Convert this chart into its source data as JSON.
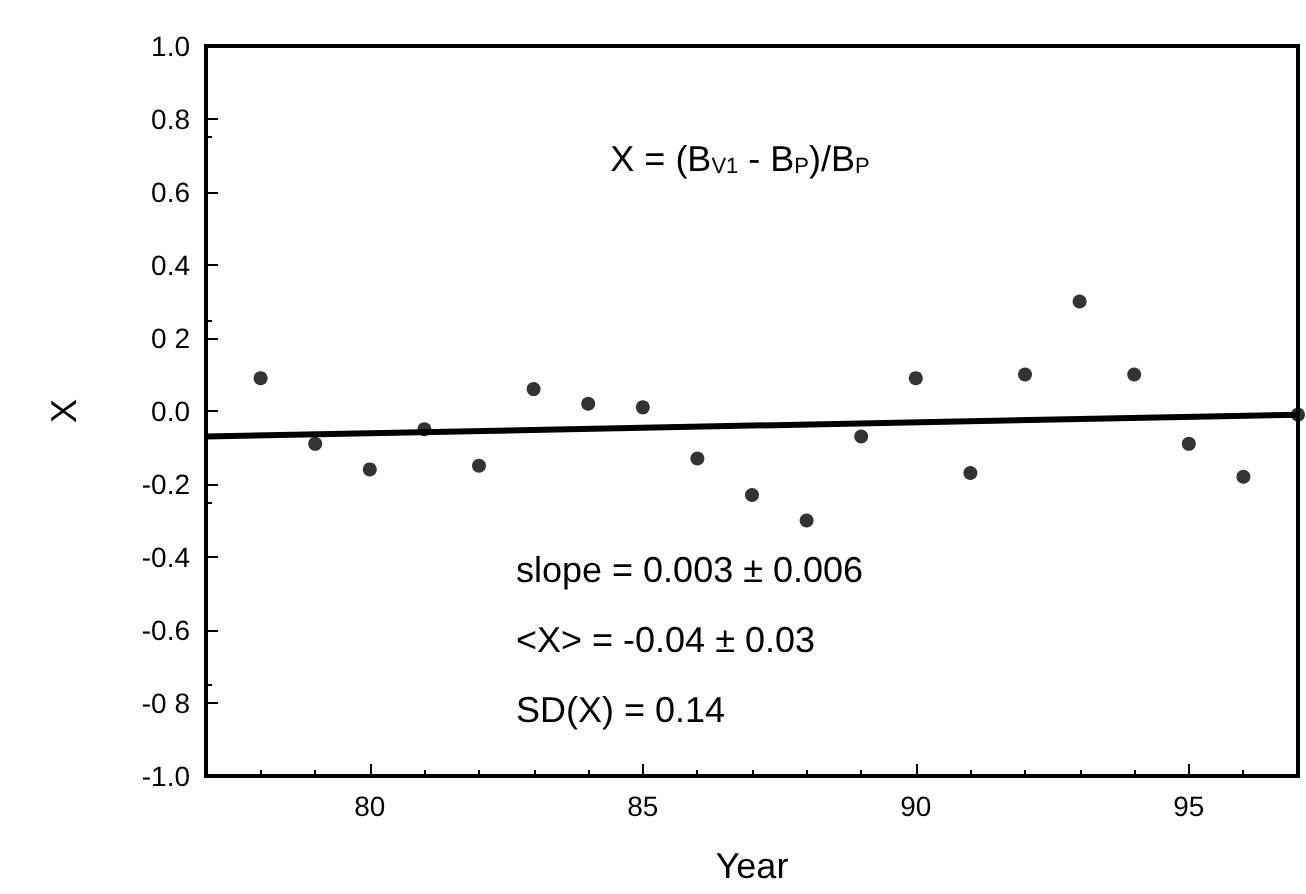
{
  "chart_data": {
    "type": "scatter",
    "xlabel": "Year",
    "ylabel": "X",
    "xlim": [
      77,
      97
    ],
    "xticks": [
      80,
      85,
      90,
      95
    ],
    "ylim": [
      -1.0,
      1.0
    ],
    "yticks": [
      {
        "value": -1.0,
        "label": "-1.0"
      },
      {
        "value": -0.8,
        "label": "-0 8"
      },
      {
        "value": -0.6,
        "label": "-0.6"
      },
      {
        "value": -0.4,
        "label": "-0.4"
      },
      {
        "value": -0.2,
        "label": "-0.2"
      },
      {
        "value": 0.0,
        "label": "0.0"
      },
      {
        "value": 0.2,
        "label": "0 2"
      },
      {
        "value": 0.4,
        "label": "0.4"
      },
      {
        "value": 0.6,
        "label": "0.6"
      },
      {
        "value": 0.8,
        "label": "0.8"
      },
      {
        "value": 1.0,
        "label": "1.0"
      }
    ],
    "grid": false,
    "marker": "circle",
    "series": [
      {
        "color": "#000000",
        "x": [
          78,
          79,
          80,
          81,
          82,
          83,
          84,
          85,
          86,
          87,
          88,
          89,
          90,
          91,
          92,
          93,
          94,
          95,
          96,
          97
        ],
        "values": [
          0.09,
          -0.09,
          -0.16,
          -0.05,
          -0.15,
          0.06,
          0.02,
          0.01,
          -0.13,
          -0.23,
          -0.3,
          -0.07,
          0.09,
          -0.17,
          0.1,
          0.3,
          0.1,
          -0.09,
          -0.18,
          -0.01
        ]
      },
      {
        "type": "line",
        "color": "#000000",
        "x": [
          77,
          97
        ],
        "values": [
          -0.07,
          -0.01
        ],
        "marker": "none",
        "line_style": "solid"
      }
    ],
    "annotations": [
      "X = (B$_{V1}$ - B$_{P}$)/B$_{P}$",
      "slope = 0.003 ± 0.006",
      "<X> = -0.04 ± 0.03",
      "SD(X) = 0.14"
    ]
  }
}
